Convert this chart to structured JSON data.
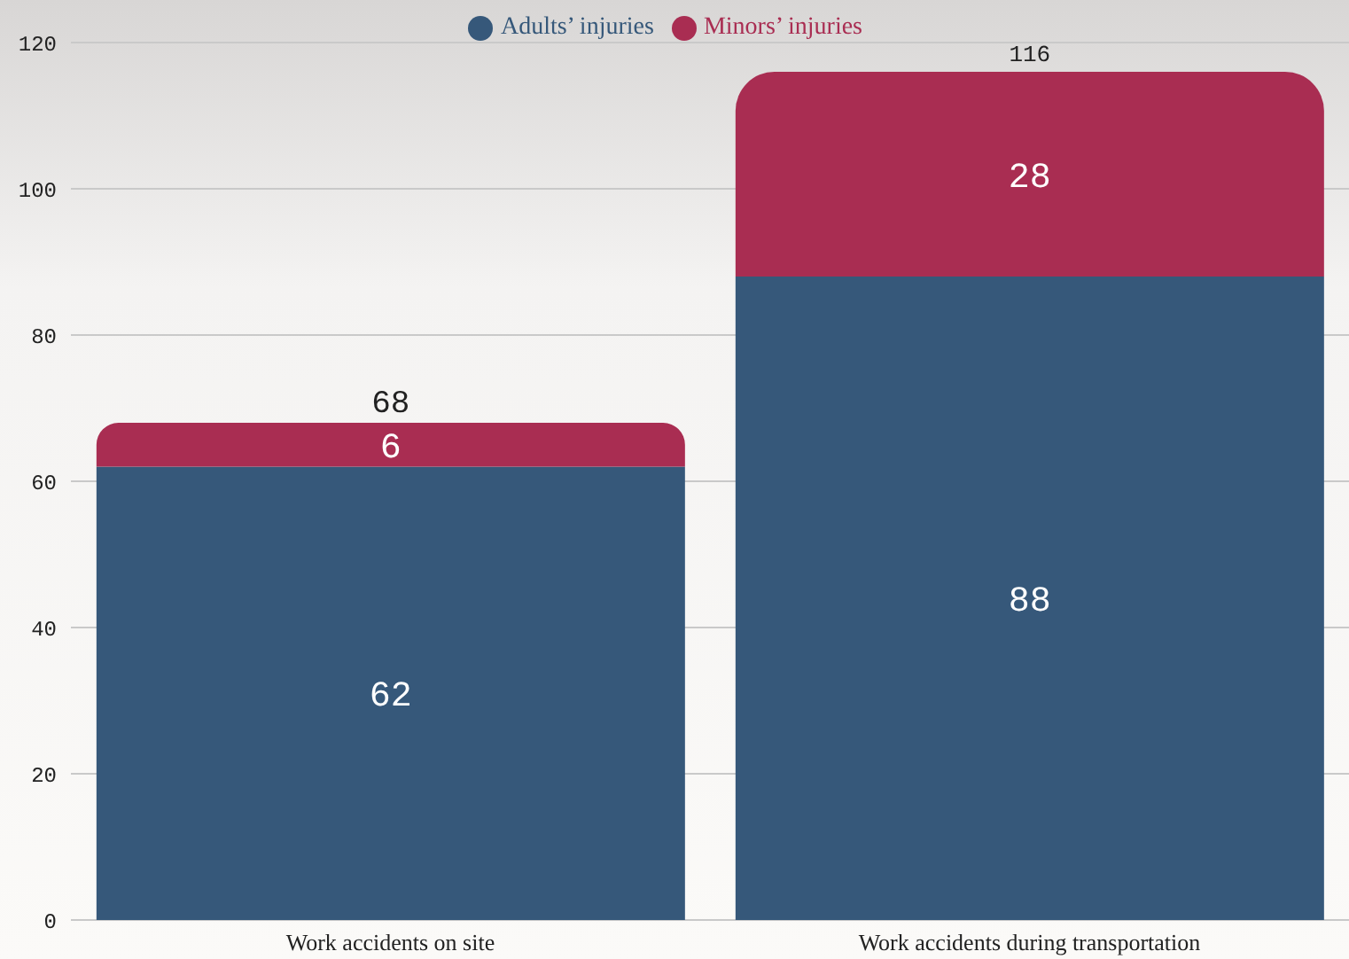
{
  "chart_data": {
    "type": "bar",
    "stacked": true,
    "categories": [
      "Work accidents on site",
      "Work accidents during transportation"
    ],
    "series": [
      {
        "name": "Adults’ injuries",
        "color": "#36587a",
        "values": [
          62,
          88
        ]
      },
      {
        "name": "Minors’ injuries",
        "color": "#a92d52",
        "values": [
          6,
          28
        ]
      }
    ],
    "totals": [
      "68",
      "116"
    ],
    "data_labels": true,
    "ylim": [
      0,
      120
    ],
    "yticks": [
      0,
      20,
      40,
      60,
      80,
      100,
      120
    ],
    "grid": "y",
    "legend": "top"
  }
}
